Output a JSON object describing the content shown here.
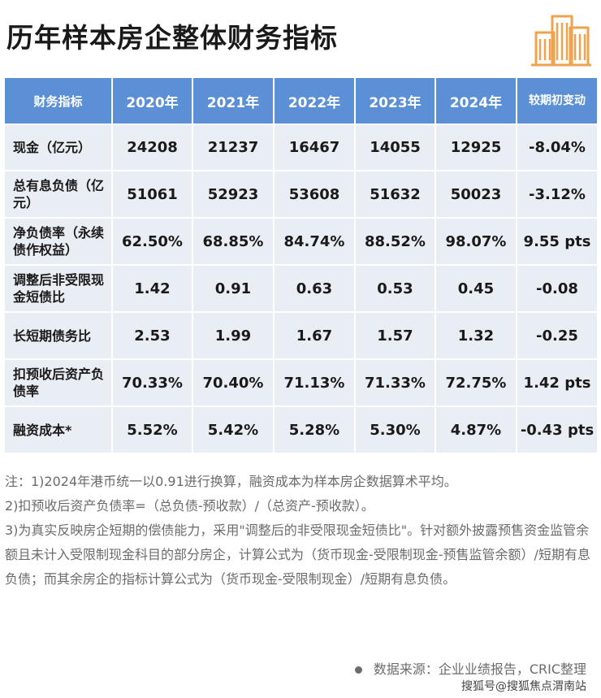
{
  "header": {
    "title": "历年样本房企整体财务指标"
  },
  "table": {
    "columns": [
      "财务指标",
      "2020年",
      "2021年",
      "2022年",
      "2023年",
      "2024年",
      "较期初变动"
    ],
    "rows": [
      {
        "metric": "现金（亿元）",
        "values": [
          "24208",
          "21237",
          "16467",
          "14055",
          "12925",
          "-8.04%"
        ]
      },
      {
        "metric": "总有息负债（亿元）",
        "values": [
          "51061",
          "52923",
          "53608",
          "51632",
          "50023",
          "-3.12%"
        ]
      },
      {
        "metric": "净负债率（永续债作权益）",
        "values": [
          "62.50%",
          "68.85%",
          "84.74%",
          "88.52%",
          "98.07%",
          "9.55 pts"
        ]
      },
      {
        "metric": "调整后非受限现金短债比",
        "values": [
          "1.42",
          "0.91",
          "0.63",
          "0.53",
          "0.45",
          "-0.08"
        ]
      },
      {
        "metric": "长短期债务比",
        "values": [
          "2.53",
          "1.99",
          "1.67",
          "1.57",
          "1.32",
          "-0.25"
        ]
      },
      {
        "metric": "扣预收后资产负债率",
        "values": [
          "70.33%",
          "70.40%",
          "71.13%",
          "71.33%",
          "72.75%",
          "1.42 pts"
        ]
      },
      {
        "metric": "融资成本*",
        "values": [
          "5.52%",
          "5.42%",
          "5.28%",
          "5.30%",
          "4.87%",
          "-0.43 pts"
        ]
      }
    ]
  },
  "notes": [
    "注：1)2024年港币统一以0.91进行换算，融资成本为样本房企数据算术平均。",
    "2)扣预收后资产负债率=（总负债-预收款）/（总资产-预收款）。",
    "3)为真实反映房企短期的偿债能力，采用\"调整后的非受限现金短债比\"。针对额外披露预售资金监管余额且未计入受限制现金科目的部分房企，计算公式为（货币现金-受限制现金-预售监管余额）/短期有息负债；而其余房企的指标计算公式为（货币现金-受限制现金）/短期有息负债。"
  ],
  "source": "数据来源：企业业绩报告，CRIC整理",
  "footer": "搜狐号@搜狐焦点渭南站",
  "colors": {
    "header_bg": "#5b8fd6",
    "row_bg": "#e9edf4",
    "logo_orange": "#f0a24c"
  },
  "icons": {
    "logo": "building-icon"
  }
}
